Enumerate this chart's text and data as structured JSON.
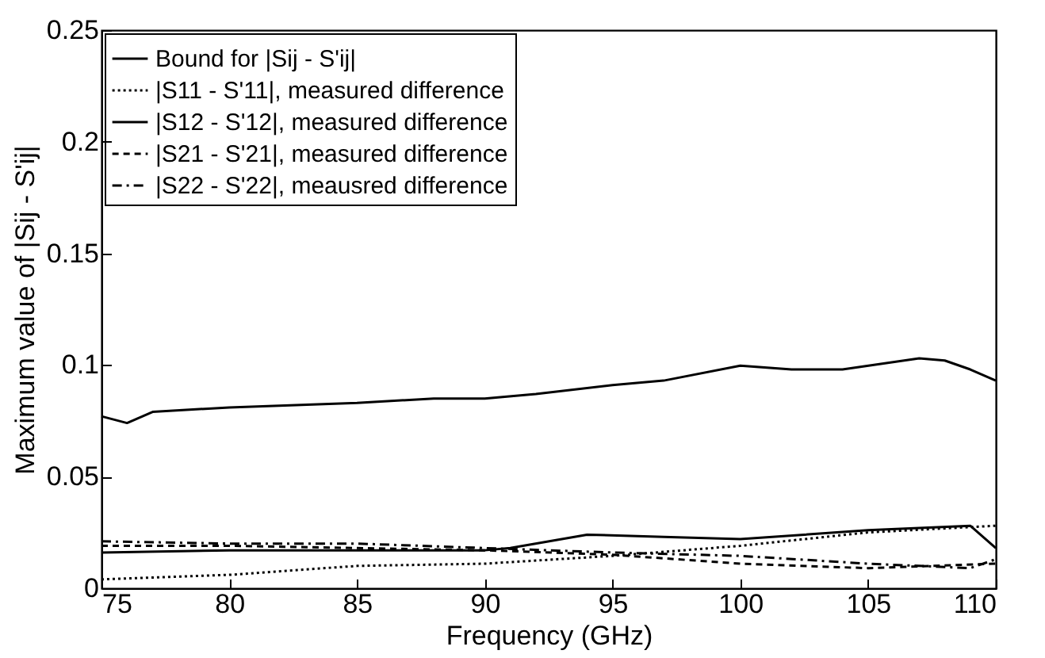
{
  "chart_data": {
    "type": "line",
    "xlabel": "Frequency (GHz)",
    "ylabel": "Maximum value of |Sij - S'ij|",
    "xlim": [
      75,
      110
    ],
    "ylim": [
      0,
      0.25
    ],
    "xticks": [
      75,
      80,
      85,
      90,
      95,
      100,
      105,
      110
    ],
    "yticks": [
      0,
      0.05,
      0.1,
      0.15,
      0.2,
      0.25
    ],
    "grid": false,
    "legend": "top left",
    "marker": "none",
    "series": [
      {
        "name": "Bound for |Sij - S'ij|",
        "color": "#000000",
        "line_style": "solid",
        "x": [
          75,
          76,
          77,
          80,
          85,
          88,
          90,
          92,
          95,
          97,
          100,
          102,
          104,
          107,
          108,
          109,
          110
        ],
        "values": [
          0.077,
          0.074,
          0.079,
          0.081,
          0.083,
          0.085,
          0.085,
          0.087,
          0.091,
          0.093,
          0.0997,
          0.098,
          0.098,
          0.103,
          0.102,
          0.098,
          0.093
        ]
      },
      {
        "name": "|S11 - S'11|, measured difference",
        "color": "#000000",
        "line_style": "dotted",
        "x": [
          75,
          80,
          85,
          90,
          95,
          100,
          105,
          110
        ],
        "values": [
          0.004,
          0.006,
          0.01,
          0.011,
          0.0145,
          0.019,
          0.025,
          0.028
        ]
      },
      {
        "name": "|S12 - S'12|, measured difference",
        "color": "#000000",
        "line_style": "solid",
        "x": [
          75,
          80,
          85,
          90,
          91,
          94,
          97,
          100,
          105,
          109,
          110
        ],
        "values": [
          0.016,
          0.017,
          0.017,
          0.017,
          0.018,
          0.024,
          0.023,
          0.022,
          0.026,
          0.028,
          0.018
        ]
      },
      {
        "name": "|S21 - S'21|, measured difference",
        "color": "#000000",
        "line_style": "dashed",
        "x": [
          75,
          80,
          85,
          90,
          95,
          100,
          105,
          110
        ],
        "values": [
          0.019,
          0.019,
          0.018,
          0.017,
          0.015,
          0.011,
          0.009,
          0.011
        ]
      },
      {
        "name": "|S22 - S'22|, meausred difference",
        "color": "#000000",
        "line_style": "dashdot",
        "x": [
          75,
          80,
          85,
          90,
          95,
          100,
          105,
          109,
          110
        ],
        "values": [
          0.021,
          0.02,
          0.02,
          0.018,
          0.016,
          0.0145,
          0.011,
          0.009,
          0.013
        ]
      }
    ]
  }
}
